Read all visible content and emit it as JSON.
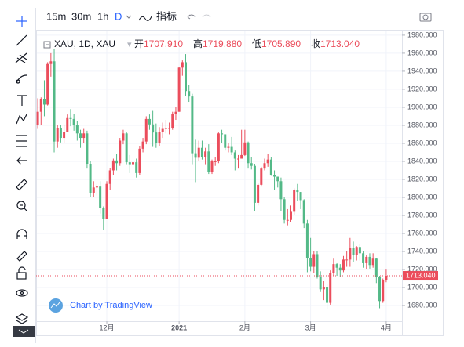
{
  "toolbar": {
    "intervals": [
      "15m",
      "30m",
      "1h",
      "D"
    ],
    "indicators": "指标"
  },
  "legend": {
    "symbol": "XAU, 1D, XAU",
    "open_label": "开",
    "open": "1707.910",
    "high_label": "高",
    "high": "1719.880",
    "low_label": "低",
    "low": "1705.890",
    "close_label": "收",
    "close": "1713.040"
  },
  "watermark": "Chart by TradingView",
  "chart_data": {
    "type": "candlestick",
    "open": [
      1880,
      1895,
      1909,
      1903,
      1948,
      1951,
      1862,
      1877,
      1866,
      1873,
      1888,
      1887,
      1880,
      1871,
      1866,
      1871,
      1837,
      1805,
      1811,
      1812,
      1788,
      1776,
      1815,
      1830,
      1841,
      1838,
      1863,
      1871,
      1839,
      1836,
      1839,
      1827,
      1854,
      1862,
      1887,
      1881,
      1872,
      1860,
      1873,
      1876,
      1877,
      1877,
      1893,
      1895,
      1944,
      1950,
      1918,
      1912,
      1849,
      1844,
      1855,
      1845,
      1851,
      1828,
      1840,
      1840,
      1871,
      1870,
      1855,
      1856,
      1850,
      1843,
      1843,
      1847,
      1861,
      1838,
      1835,
      1794,
      1814,
      1832,
      1838,
      1842,
      1825,
      1823,
      1818,
      1798,
      1775,
      1775,
      1784,
      1808,
      1806,
      1797,
      1771,
      1733,
      1723,
      1737,
      1712,
      1698,
      1700,
      1683,
      1716,
      1726,
      1722,
      1719,
      1731,
      1731,
      1744,
      1736,
      1745,
      1738,
      1727,
      1734,
      1725,
      1732,
      1712,
      1685,
      1707.91
    ],
    "high": [
      1910,
      1911,
      1930,
      1950,
      1960,
      1965,
      1880,
      1880,
      1881,
      1892,
      1898,
      1893,
      1885,
      1875,
      1876,
      1874,
      1840,
      1818,
      1815,
      1818,
      1790,
      1818,
      1833,
      1843,
      1848,
      1866,
      1875,
      1873,
      1847,
      1849,
      1843,
      1857,
      1866,
      1890,
      1892,
      1896,
      1882,
      1878,
      1883,
      1886,
      1883,
      1895,
      1900,
      1945,
      1952,
      1959,
      1925,
      1915,
      1864,
      1863,
      1863,
      1855,
      1859,
      1842,
      1845,
      1872,
      1875,
      1870,
      1860,
      1867,
      1852,
      1847,
      1875,
      1875,
      1862,
      1845,
      1837,
      1816,
      1834,
      1843,
      1848,
      1845,
      1830,
      1823,
      1822,
      1800,
      1787,
      1791,
      1810,
      1815,
      1806,
      1798,
      1775,
      1755,
      1740,
      1740,
      1718,
      1707,
      1704,
      1719,
      1732,
      1727,
      1726,
      1735,
      1740,
      1755,
      1751,
      1746,
      1748,
      1740,
      1736,
      1738,
      1738,
      1733,
      1713,
      1710,
      1719.88
    ],
    "low": [
      1876,
      1880,
      1890,
      1902,
      1934,
      1850,
      1855,
      1861,
      1860,
      1873,
      1879,
      1874,
      1863,
      1855,
      1860,
      1832,
      1800,
      1800,
      1802,
      1782,
      1764,
      1776,
      1808,
      1825,
      1830,
      1835,
      1859,
      1836,
      1827,
      1830,
      1822,
      1825,
      1850,
      1859,
      1875,
      1856,
      1855,
      1857,
      1866,
      1871,
      1870,
      1875,
      1886,
      1895,
      1935,
      1913,
      1906,
      1836,
      1817,
      1840,
      1842,
      1836,
      1826,
      1826,
      1835,
      1838,
      1860,
      1852,
      1850,
      1847,
      1830,
      1832,
      1843,
      1846,
      1832,
      1831,
      1785,
      1791,
      1812,
      1830,
      1834,
      1824,
      1808,
      1811,
      1785,
      1771,
      1769,
      1773,
      1781,
      1796,
      1787,
      1766,
      1717,
      1718,
      1716,
      1710,
      1695,
      1686,
      1676,
      1681,
      1713,
      1713,
      1712,
      1717,
      1723,
      1723,
      1728,
      1730,
      1730,
      1722,
      1720,
      1721,
      1722,
      1705,
      1677,
      1683,
      1705.89
    ],
    "close": [
      1895,
      1909,
      1903,
      1948,
      1951,
      1862,
      1877,
      1866,
      1873,
      1888,
      1887,
      1880,
      1871,
      1866,
      1871,
      1837,
      1805,
      1811,
      1812,
      1788,
      1776,
      1815,
      1830,
      1841,
      1838,
      1863,
      1871,
      1839,
      1836,
      1839,
      1827,
      1854,
      1862,
      1887,
      1881,
      1872,
      1860,
      1873,
      1876,
      1877,
      1877,
      1893,
      1895,
      1944,
      1950,
      1918,
      1912,
      1849,
      1844,
      1855,
      1845,
      1851,
      1828,
      1840,
      1840,
      1871,
      1870,
      1855,
      1856,
      1850,
      1843,
      1843,
      1847,
      1861,
      1838,
      1835,
      1794,
      1814,
      1832,
      1838,
      1842,
      1825,
      1823,
      1818,
      1798,
      1775,
      1775,
      1784,
      1808,
      1806,
      1797,
      1771,
      1733,
      1723,
      1737,
      1712,
      1698,
      1700,
      1683,
      1716,
      1726,
      1722,
      1719,
      1731,
      1731,
      1744,
      1736,
      1745,
      1738,
      1727,
      1734,
      1725,
      1732,
      1712,
      1685,
      1708,
      1713.04
    ],
    "up_color": "#eb4d5c",
    "down_color": "#53b987",
    "ylim": [
      1647,
      1986
    ],
    "yticks": [
      {
        "value": 1680,
        "label": "1680.000"
      },
      {
        "value": 1700,
        "label": "1700.000"
      },
      {
        "value": 1720,
        "label": "1720.000"
      },
      {
        "value": 1740,
        "label": "1740.000"
      },
      {
        "value": 1760,
        "label": "1760.000"
      },
      {
        "value": 1780,
        "label": "1780.000"
      },
      {
        "value": 1800,
        "label": "1800.000"
      },
      {
        "value": 1820,
        "label": "1820.000"
      },
      {
        "value": 1840,
        "label": "1840.000"
      },
      {
        "value": 1860,
        "label": "1860.000"
      },
      {
        "value": 1880,
        "label": "1880.000"
      },
      {
        "value": 1900,
        "label": "1900.000"
      },
      {
        "value": 1920,
        "label": "1920.000"
      },
      {
        "value": 1940,
        "label": "1940.000"
      },
      {
        "value": 1960,
        "label": "1960.000"
      },
      {
        "value": 1980,
        "label": "1980.000"
      }
    ],
    "xlim": [
      -0.5,
      110.8
    ],
    "xticks": [
      {
        "value": 21,
        "label": "12月"
      },
      {
        "value": 43,
        "label": "2021"
      },
      {
        "value": 63,
        "label": "2月"
      },
      {
        "value": 83,
        "label": "3月"
      },
      {
        "value": 106,
        "label": "4月"
      }
    ],
    "grid": true,
    "last_price_label": "1713.040"
  }
}
